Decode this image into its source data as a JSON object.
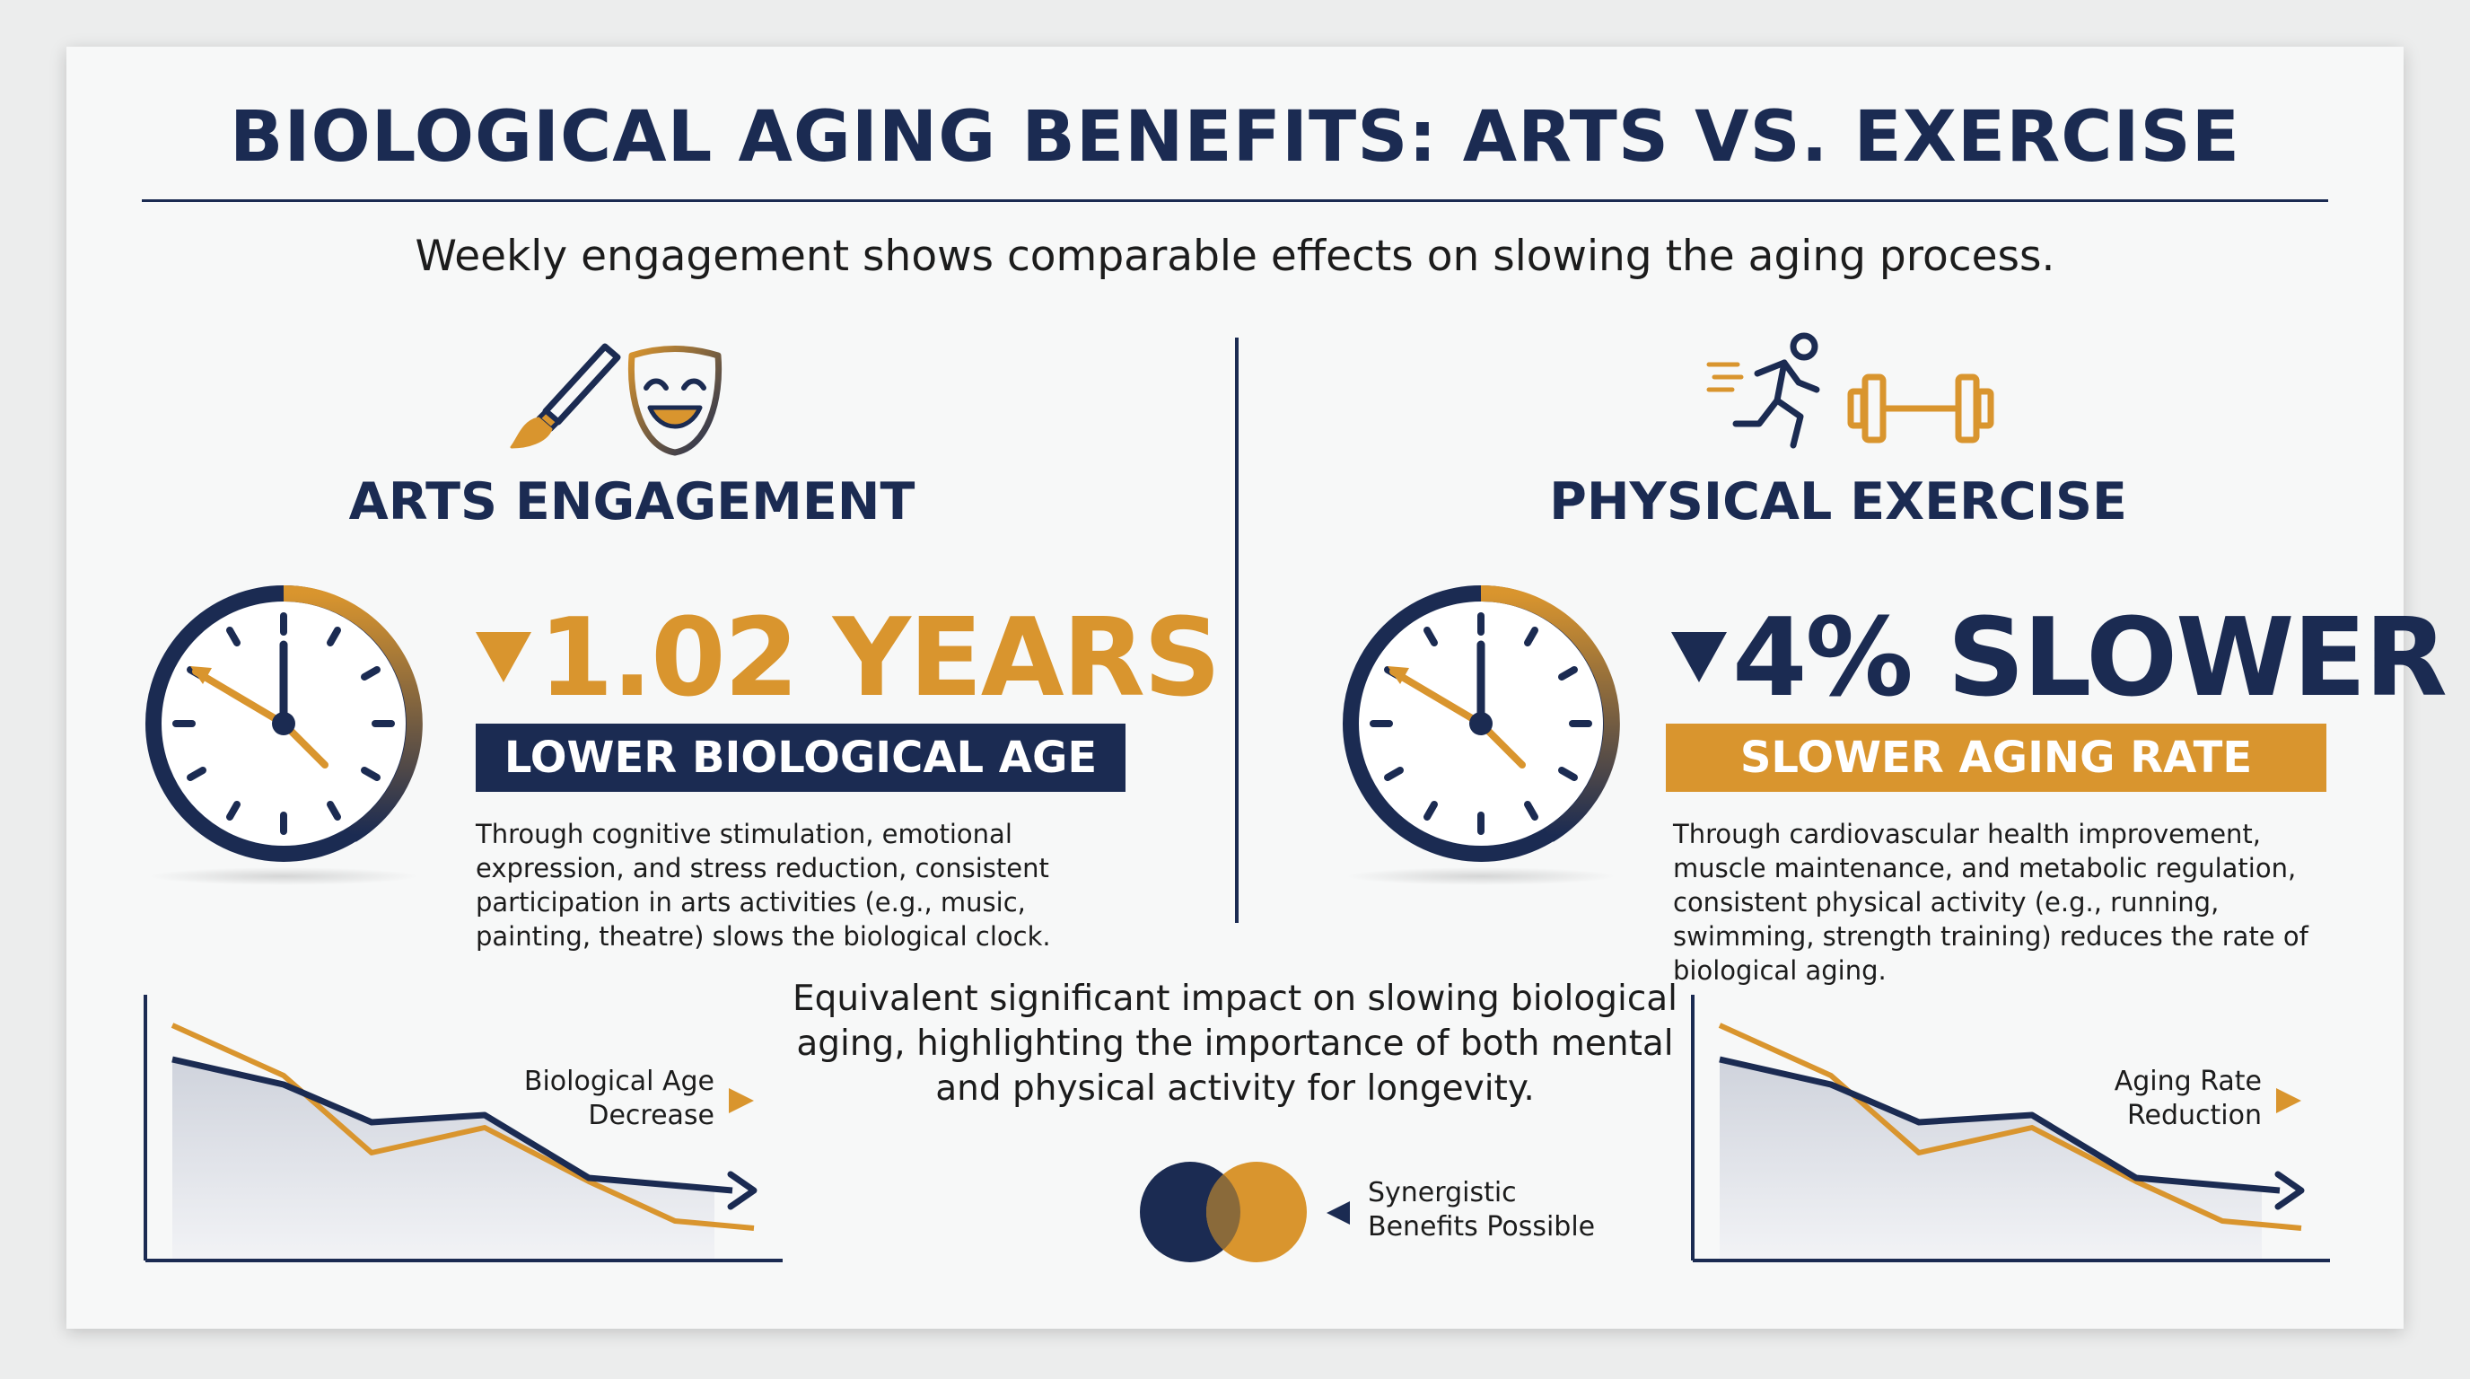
{
  "title": "BIOLOGICAL AGING BENEFITS: ARTS VS. EXERCISE",
  "subtitle": "Weekly engagement shows comparable effects on slowing the aging process.",
  "colors": {
    "navy": "#1b2b52",
    "gold": "#d9952e"
  },
  "arts": {
    "heading": "ARTS ENGAGEMENT",
    "icons": [
      "paintbrush-icon",
      "theatre-mask-icon"
    ],
    "stat": "1.02 YEARS",
    "band": "LOWER BIOLOGICAL AGE",
    "description": "Through cognitive stimulation, emotional expression, and stress reduction, consistent participation in arts activities (e.g., music, painting, theatre) slows the biological clock.",
    "chart_label_line1": "Biological Age",
    "chart_label_line2": "Decrease"
  },
  "exercise": {
    "heading": "PHYSICAL EXERCISE",
    "icons": [
      "running-person-icon",
      "dumbbell-icon"
    ],
    "stat": "4% SLOWER",
    "band": "SLOWER AGING RATE",
    "description": "Through cardiovascular health improvement, muscle maintenance, and metabolic regulation, consistent physical activity (e.g., running, swimming, strength training) reduces the rate of biological aging.",
    "chart_label_line1": "Aging Rate",
    "chart_label_line2": "Reduction"
  },
  "conclusion": "Equivalent significant impact on slowing biological aging, highlighting the importance of both mental and physical activity for longevity.",
  "synergy_line1": "Synergistic",
  "synergy_line2": "Benefits Possible"
}
